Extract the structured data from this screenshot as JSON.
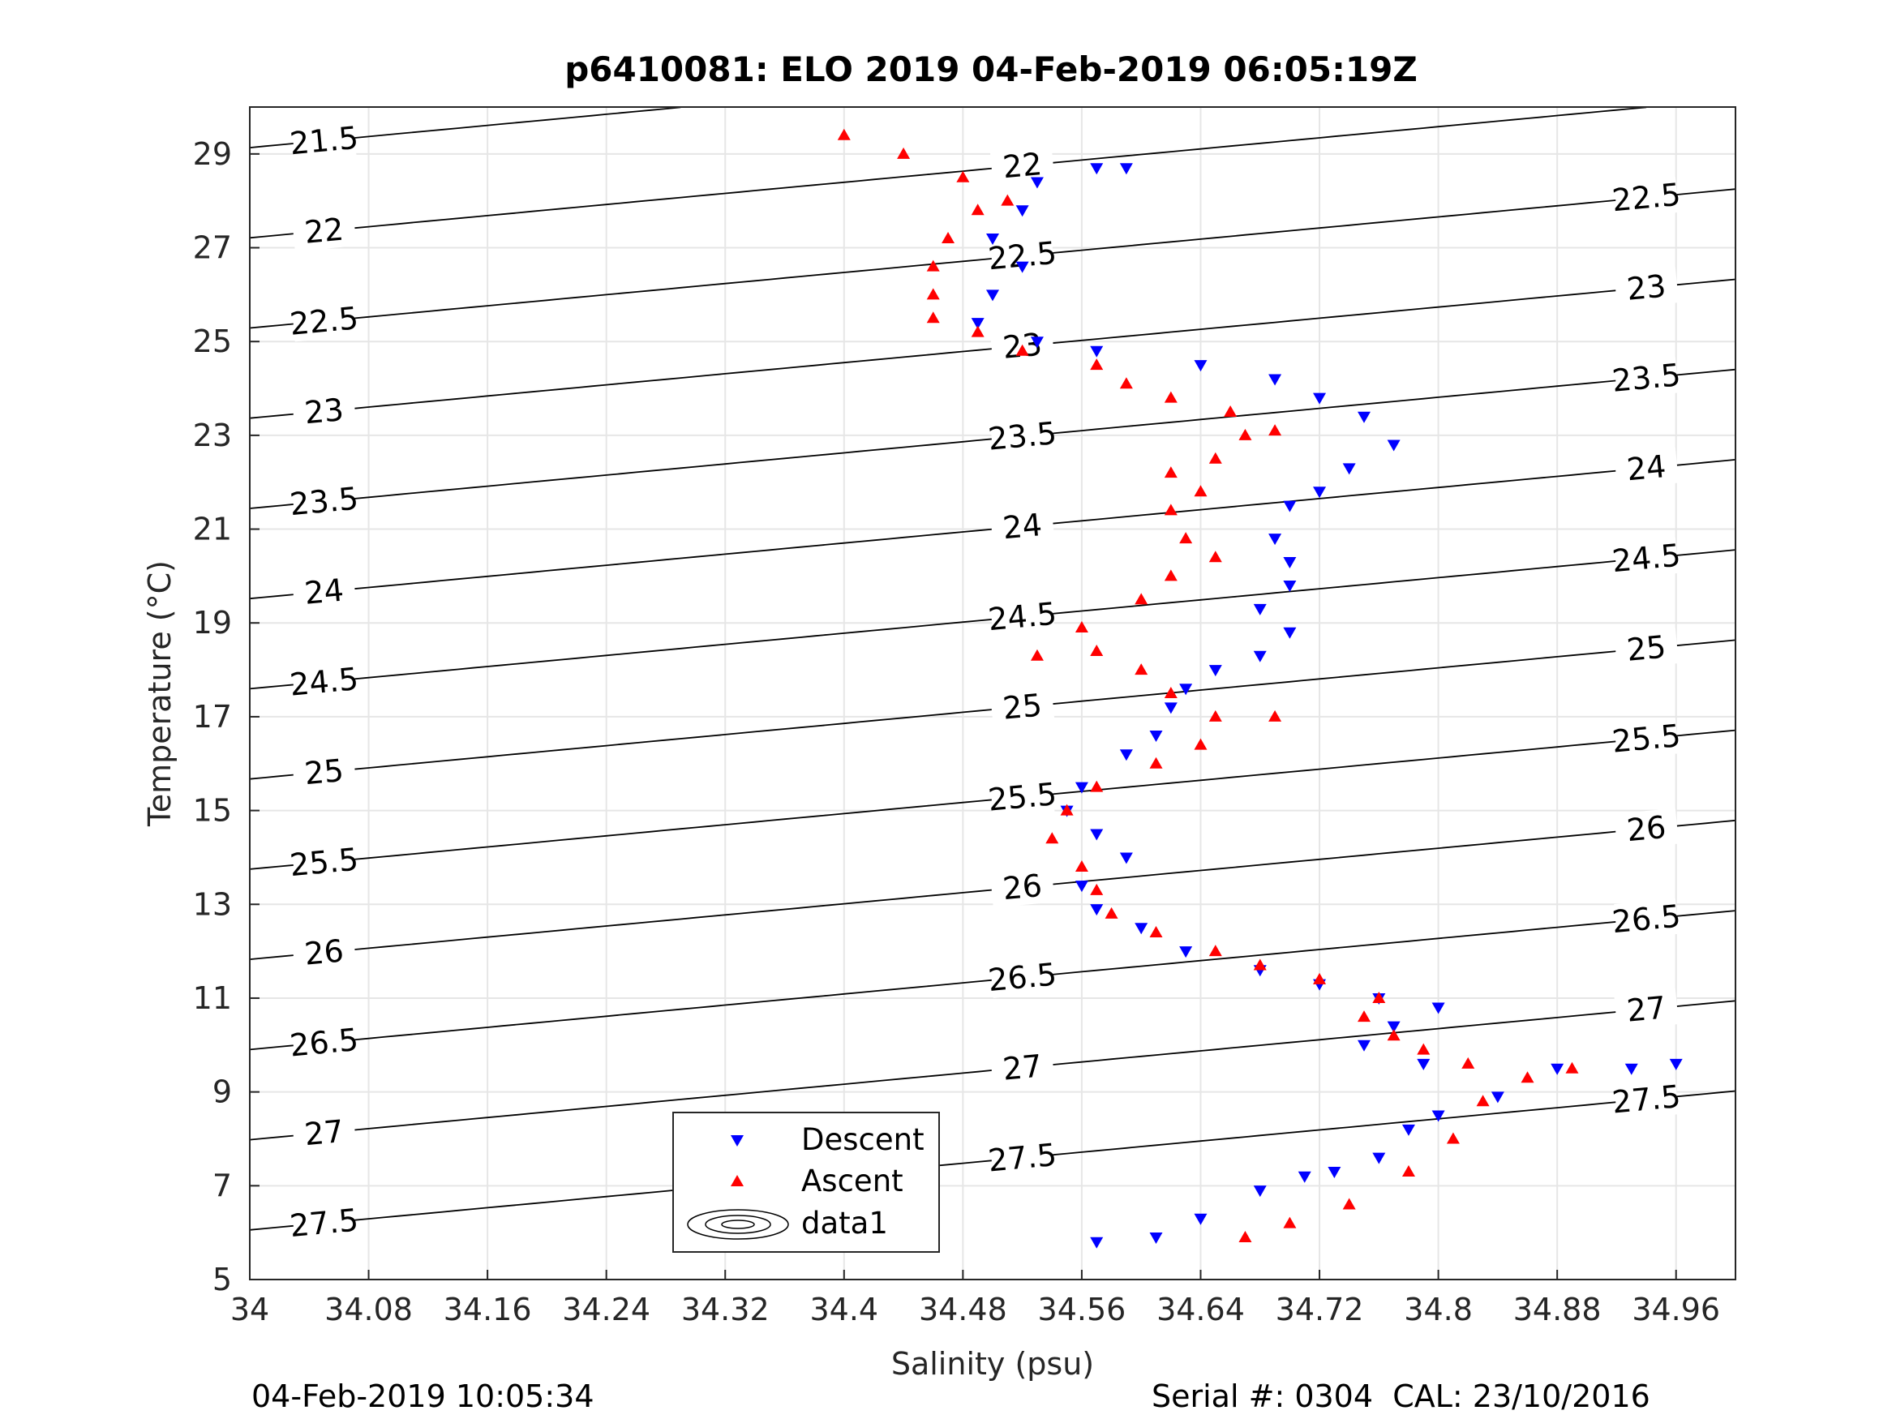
{
  "chart_data": {
    "type": "scatter",
    "title": "p6410081: ELO 2019 04-Feb-2019 06:05:19Z",
    "xlabel": "Salinity (psu)",
    "ylabel": "Temperature (°C)",
    "xlim": [
      34.0,
      35.0
    ],
    "ylim": [
      5,
      30
    ],
    "xticks": [
      "34",
      "34.08",
      "34.16",
      "34.24",
      "34.32",
      "34.4",
      "34.48",
      "34.56",
      "34.64",
      "34.72",
      "34.8",
      "34.88",
      "34.96"
    ],
    "yticks": [
      "5",
      "7",
      "9",
      "11",
      "13",
      "15",
      "17",
      "19",
      "21",
      "23",
      "25",
      "27",
      "29"
    ],
    "grid": true,
    "legend_position": "bottom-center",
    "contours": {
      "kind": "sigma-theta isopycnals",
      "levels": [
        "21.5",
        "22",
        "22.5",
        "23",
        "23.5",
        "24",
        "24.5",
        "25",
        "25.5",
        "26",
        "26.5",
        "27",
        "27.5"
      ],
      "color": "#000000"
    },
    "series": [
      {
        "name": "Descent",
        "marker": "triangle-down",
        "color": "#0000ff",
        "points": [
          [
            34.57,
            5.8
          ],
          [
            34.61,
            5.9
          ],
          [
            34.64,
            6.3
          ],
          [
            34.68,
            6.9
          ],
          [
            34.71,
            7.2
          ],
          [
            34.73,
            7.3
          ],
          [
            34.76,
            7.6
          ],
          [
            34.78,
            8.2
          ],
          [
            34.8,
            8.5
          ],
          [
            34.84,
            8.9
          ],
          [
            34.88,
            9.5
          ],
          [
            34.93,
            9.5
          ],
          [
            34.96,
            9.6
          ],
          [
            34.79,
            9.6
          ],
          [
            34.75,
            10.0
          ],
          [
            34.77,
            10.4
          ],
          [
            34.8,
            10.8
          ],
          [
            34.76,
            11.0
          ],
          [
            34.72,
            11.3
          ],
          [
            34.68,
            11.6
          ],
          [
            34.63,
            12.0
          ],
          [
            34.6,
            12.5
          ],
          [
            34.57,
            12.9
          ],
          [
            34.56,
            13.4
          ],
          [
            34.59,
            14.0
          ],
          [
            34.57,
            14.5
          ],
          [
            34.55,
            15.0
          ],
          [
            34.56,
            15.5
          ],
          [
            34.59,
            16.2
          ],
          [
            34.61,
            16.6
          ],
          [
            34.62,
            17.2
          ],
          [
            34.63,
            17.6
          ],
          [
            34.65,
            18.0
          ],
          [
            34.68,
            18.3
          ],
          [
            34.7,
            18.8
          ],
          [
            34.68,
            19.3
          ],
          [
            34.7,
            19.8
          ],
          [
            34.7,
            20.3
          ],
          [
            34.69,
            20.8
          ],
          [
            34.7,
            21.5
          ],
          [
            34.72,
            21.8
          ],
          [
            34.74,
            22.3
          ],
          [
            34.77,
            22.8
          ],
          [
            34.75,
            23.4
          ],
          [
            34.72,
            23.8
          ],
          [
            34.69,
            24.2
          ],
          [
            34.64,
            24.5
          ],
          [
            34.57,
            24.8
          ],
          [
            34.53,
            25.0
          ],
          [
            34.49,
            25.4
          ],
          [
            34.5,
            26.0
          ],
          [
            34.52,
            26.6
          ],
          [
            34.5,
            27.2
          ],
          [
            34.52,
            27.8
          ],
          [
            34.53,
            28.4
          ],
          [
            34.57,
            28.7
          ],
          [
            34.59,
            28.7
          ]
        ]
      },
      {
        "name": "Ascent",
        "marker": "triangle-up",
        "color": "#ff0000",
        "points": [
          [
            34.67,
            5.9
          ],
          [
            34.7,
            6.2
          ],
          [
            34.74,
            6.6
          ],
          [
            34.78,
            7.3
          ],
          [
            34.81,
            8.0
          ],
          [
            34.83,
            8.8
          ],
          [
            34.86,
            9.3
          ],
          [
            34.89,
            9.5
          ],
          [
            34.82,
            9.6
          ],
          [
            34.79,
            9.9
          ],
          [
            34.77,
            10.2
          ],
          [
            34.75,
            10.6
          ],
          [
            34.76,
            11.0
          ],
          [
            34.72,
            11.4
          ],
          [
            34.68,
            11.7
          ],
          [
            34.65,
            12.0
          ],
          [
            34.61,
            12.4
          ],
          [
            34.58,
            12.8
          ],
          [
            34.57,
            13.3
          ],
          [
            34.56,
            13.8
          ],
          [
            34.54,
            14.4
          ],
          [
            34.55,
            15.0
          ],
          [
            34.57,
            15.5
          ],
          [
            34.61,
            16.0
          ],
          [
            34.64,
            16.4
          ],
          [
            34.65,
            17.0
          ],
          [
            34.69,
            17.0
          ],
          [
            34.62,
            17.5
          ],
          [
            34.6,
            18.0
          ],
          [
            34.57,
            18.4
          ],
          [
            34.53,
            18.3
          ],
          [
            34.56,
            18.9
          ],
          [
            34.6,
            19.5
          ],
          [
            34.62,
            20.0
          ],
          [
            34.65,
            20.4
          ],
          [
            34.63,
            20.8
          ],
          [
            34.62,
            21.4
          ],
          [
            34.64,
            21.8
          ],
          [
            34.62,
            22.2
          ],
          [
            34.65,
            22.5
          ],
          [
            34.67,
            23.0
          ],
          [
            34.69,
            23.1
          ],
          [
            34.66,
            23.5
          ],
          [
            34.62,
            23.8
          ],
          [
            34.59,
            24.1
          ],
          [
            34.57,
            24.5
          ],
          [
            34.52,
            24.8
          ],
          [
            34.49,
            25.2
          ],
          [
            34.46,
            25.5
          ],
          [
            34.46,
            26.0
          ],
          [
            34.46,
            26.6
          ],
          [
            34.47,
            27.2
          ],
          [
            34.49,
            27.8
          ],
          [
            34.51,
            28.0
          ],
          [
            34.48,
            28.5
          ],
          [
            34.44,
            29.0
          ],
          [
            34.4,
            29.4
          ]
        ]
      },
      {
        "name": "data1",
        "marker": "contour-ellipse",
        "color": "#000000",
        "points": []
      }
    ]
  },
  "footer": {
    "timestamp": "04-Feb-2019 10:05:34",
    "serial": "Serial #: 0304  CAL: 23/10/2016"
  }
}
